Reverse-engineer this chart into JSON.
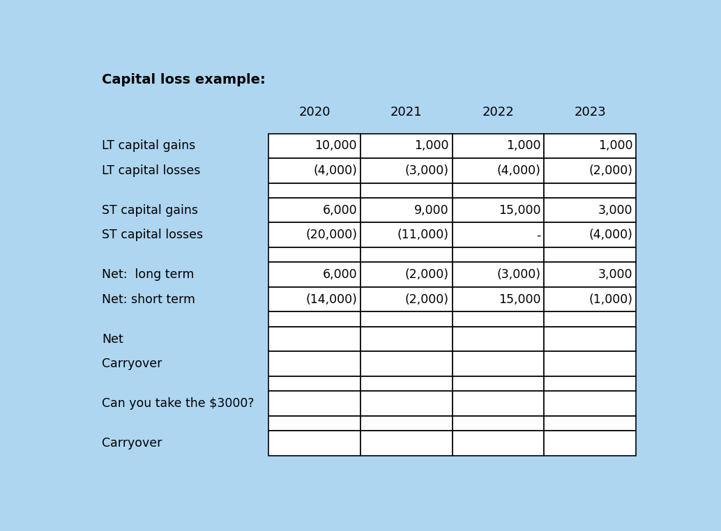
{
  "title": "Capital loss example:",
  "background_color": "#aed6f1",
  "years": [
    "2020",
    "2021",
    "2022",
    "2023"
  ],
  "row_labels_text": [
    [
      "LT capital gains",
      "LT capital losses"
    ],
    [
      "ST capital gains",
      "ST capital losses"
    ],
    [
      "Net:  long term",
      "Net: short term"
    ],
    [
      "Net",
      "Carryover"
    ],
    [
      "Can you take the $3000?"
    ],
    [
      "Carryover"
    ]
  ],
  "table_data": [
    [
      "10,000",
      "1,000",
      "1,000",
      "1,000"
    ],
    [
      "(4,000)",
      "(3,000)",
      "(4,000)",
      "(2,000)"
    ],
    [
      "",
      "",
      "",
      ""
    ],
    [
      "6,000",
      "9,000",
      "15,000",
      "3,000"
    ],
    [
      "(20,000)",
      "(11,000)",
      "-",
      "(4,000)"
    ],
    [
      "",
      "",
      "",
      ""
    ],
    [
      "6,000",
      "(2,000)",
      "(3,000)",
      "3,000"
    ],
    [
      "(14,000)",
      "(2,000)",
      "15,000",
      "(1,000)"
    ],
    [
      "",
      "",
      "",
      ""
    ],
    [
      "",
      "",
      "",
      ""
    ],
    [
      "",
      "",
      "",
      ""
    ],
    [
      "",
      "",
      "",
      ""
    ],
    [
      "",
      "",
      "",
      ""
    ],
    [
      "",
      "",
      "",
      ""
    ],
    [
      "",
      "",
      "",
      ""
    ]
  ],
  "col_header_fontsize": 13,
  "row_label_fontsize": 12.5,
  "cell_fontsize": 12.5,
  "title_fontsize": 14,
  "title_fontweight": "bold"
}
